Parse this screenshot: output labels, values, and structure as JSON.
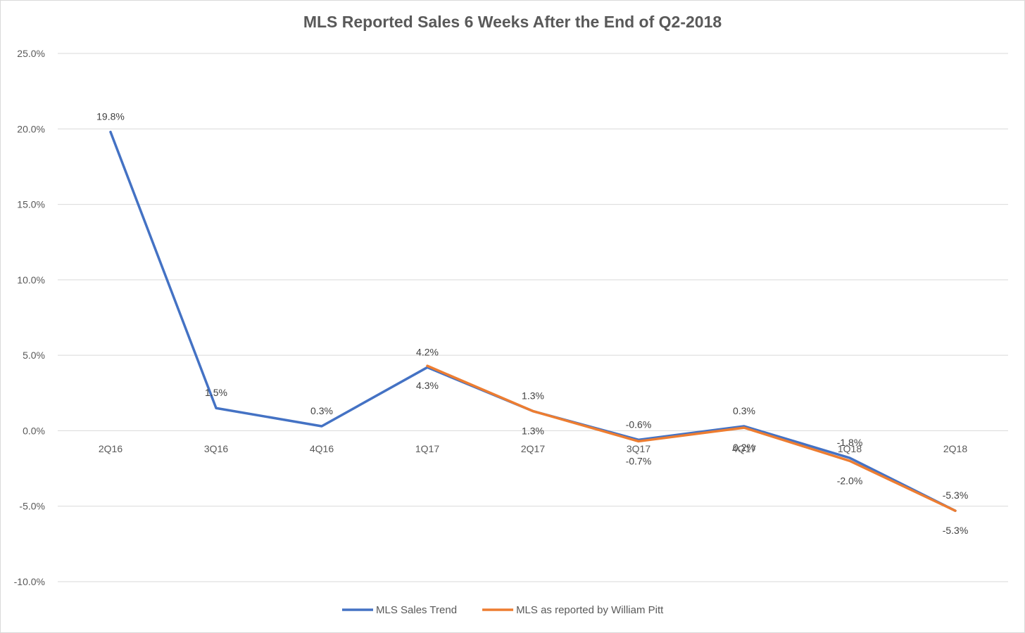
{
  "chart_data": {
    "type": "line",
    "title": "MLS Reported Sales 6 Weeks After the End of Q2-2018",
    "xlabel": "",
    "ylabel": "",
    "ylim": [
      -10,
      25
    ],
    "yticks": [
      25,
      20,
      15,
      10,
      5,
      0,
      -5,
      -10
    ],
    "ytick_labels": [
      "25.0%",
      "20.0%",
      "15.0%",
      "10.0%",
      "5.0%",
      "0.0%",
      "-5.0%",
      "-10.0%"
    ],
    "categories": [
      "2Q16",
      "3Q16",
      "4Q16",
      "1Q17",
      "2Q17",
      "3Q17",
      "4Q17",
      "1Q18",
      "2Q18"
    ],
    "grid": true,
    "legend_position": "bottom",
    "series": [
      {
        "name": "MLS Sales Trend",
        "color": "#4472c4",
        "values": [
          19.8,
          1.5,
          0.3,
          4.2,
          1.3,
          -0.6,
          0.3,
          -1.8,
          -5.3
        ],
        "labels": [
          "19.8%",
          "1.5%",
          "0.3%",
          "4.2%",
          "1.3%",
          "-0.6%",
          "0.3%",
          "-1.8%",
          "-5.3%"
        ]
      },
      {
        "name": "MLS as reported by William Pitt",
        "color": "#ed7d31",
        "values": [
          null,
          null,
          null,
          4.3,
          1.3,
          -0.7,
          0.2,
          -2.0,
          -5.3
        ],
        "labels": [
          null,
          null,
          null,
          "4.3%",
          "1.3%",
          "-0.7%",
          "0.2%",
          "-2.0%",
          "-5.3%"
        ]
      }
    ]
  }
}
